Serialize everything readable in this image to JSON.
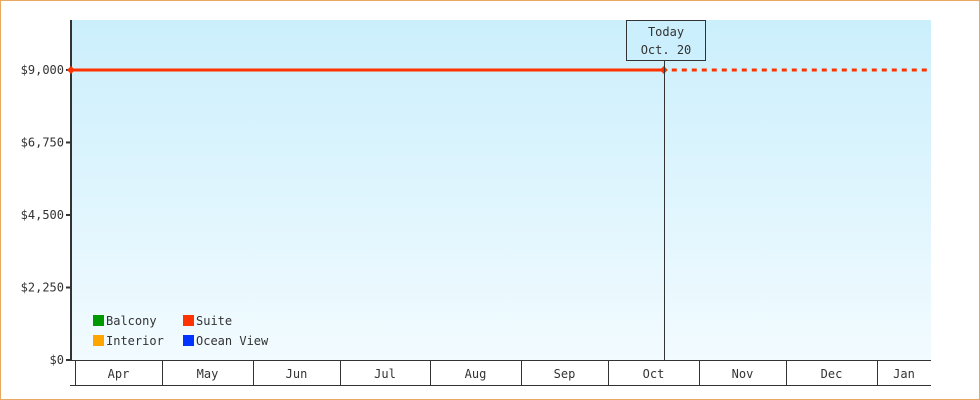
{
  "chart_data": {
    "type": "line",
    "title": "",
    "xlabel": "",
    "ylabel": "",
    "ylim": [
      0,
      10550
    ],
    "y_ticks": [
      0,
      2250,
      4500,
      6750,
      9000
    ],
    "y_tick_labels": [
      "$0",
      "$2,250",
      "$4,500",
      "$6,750",
      "$9,000"
    ],
    "x_tick_labels": [
      "Apr",
      "May",
      "Jun",
      "Jul",
      "Aug",
      "Sep",
      "Oct",
      "Nov",
      "Dec",
      "Jan"
    ],
    "grid": false,
    "background": "gradient light blue",
    "today_marker": {
      "line1": "Today",
      "line2": "Oct. 20",
      "month": "Oct",
      "day": 20
    },
    "legend_position": "bottom-left",
    "legend": [
      {
        "name": "Balcony",
        "color": "#009900"
      },
      {
        "name": "Suite",
        "color": "#ff3300"
      },
      {
        "name": "Interior",
        "color": "#ffa500"
      },
      {
        "name": "Ocean View",
        "color": "#0033ff"
      }
    ],
    "series": [
      {
        "name": "Suite",
        "color": "#ff3300",
        "points": [
          {
            "month": "Apr",
            "day": 1,
            "value": 9000
          },
          {
            "month": "Oct",
            "day": 20,
            "value": 9000
          }
        ],
        "projection": {
          "style": "dashed",
          "value": 9000,
          "to": "Jan"
        }
      }
    ]
  }
}
